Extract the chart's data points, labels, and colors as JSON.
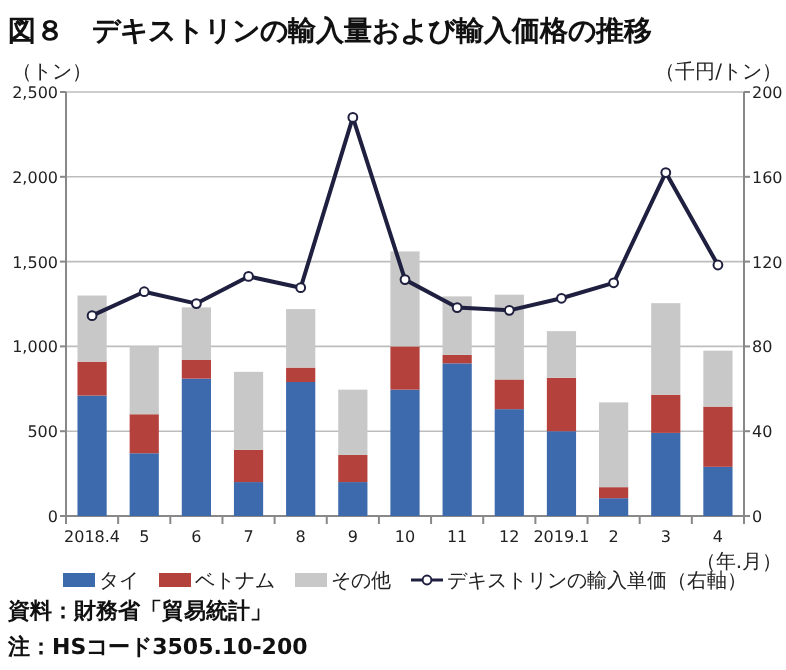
{
  "chart_data": {
    "type": "bar",
    "title": "図８　デキストリンの輸入量および輸入価格の推移",
    "categories": [
      "2018.4",
      "5",
      "6",
      "7",
      "8",
      "9",
      "10",
      "11",
      "12",
      "2019.1",
      "2",
      "3",
      "4"
    ],
    "xlabel": "（年.月）",
    "ylabel": "（トン）",
    "y2label": "（千円/トン）",
    "stacked": true,
    "grid": "y",
    "legend": "bottom",
    "marker": "circle",
    "ylim": [
      0,
      2500
    ],
    "yticks": [
      0,
      500,
      {
        "value": 1000,
        "label": "1,000"
      },
      {
        "value": 1500,
        "label": "1,500"
      },
      {
        "value": 2000,
        "label": "2,000"
      },
      {
        "value": 2500,
        "label": "2,500"
      }
    ],
    "y2lim": [
      0,
      200
    ],
    "y2ticks": [
      0,
      40,
      80,
      120,
      160,
      200
    ],
    "series": [
      {
        "name": "タイ",
        "color": "#3d6aad",
        "values": [
          710,
          370,
          810,
          200,
          790,
          200,
          745,
          900,
          630,
          500,
          105,
          490,
          290
        ]
      },
      {
        "name": "ベトナム",
        "color": "#b5413c",
        "values": [
          200,
          230,
          110,
          190,
          85,
          160,
          255,
          50,
          175,
          315,
          65,
          225,
          355
        ]
      },
      {
        "name": "その他",
        "color": "#c8c8c8",
        "values": [
          390,
          400,
          310,
          460,
          345,
          385,
          560,
          345,
          500,
          275,
          500,
          540,
          330
        ]
      },
      {
        "name": "デキストリンの輸入単価（右軸）",
        "type": "line",
        "axis": "y2",
        "color": "#1f1f3f",
        "values": [
          94.5,
          105.8,
          100.2,
          113,
          107.7,
          188,
          111.5,
          98.3,
          97,
          102.7,
          110,
          162,
          118.4
        ]
      }
    ],
    "annotations": [
      "資料：財務省「貿易統計」",
      "注：HSコード3505.10-200"
    ]
  }
}
